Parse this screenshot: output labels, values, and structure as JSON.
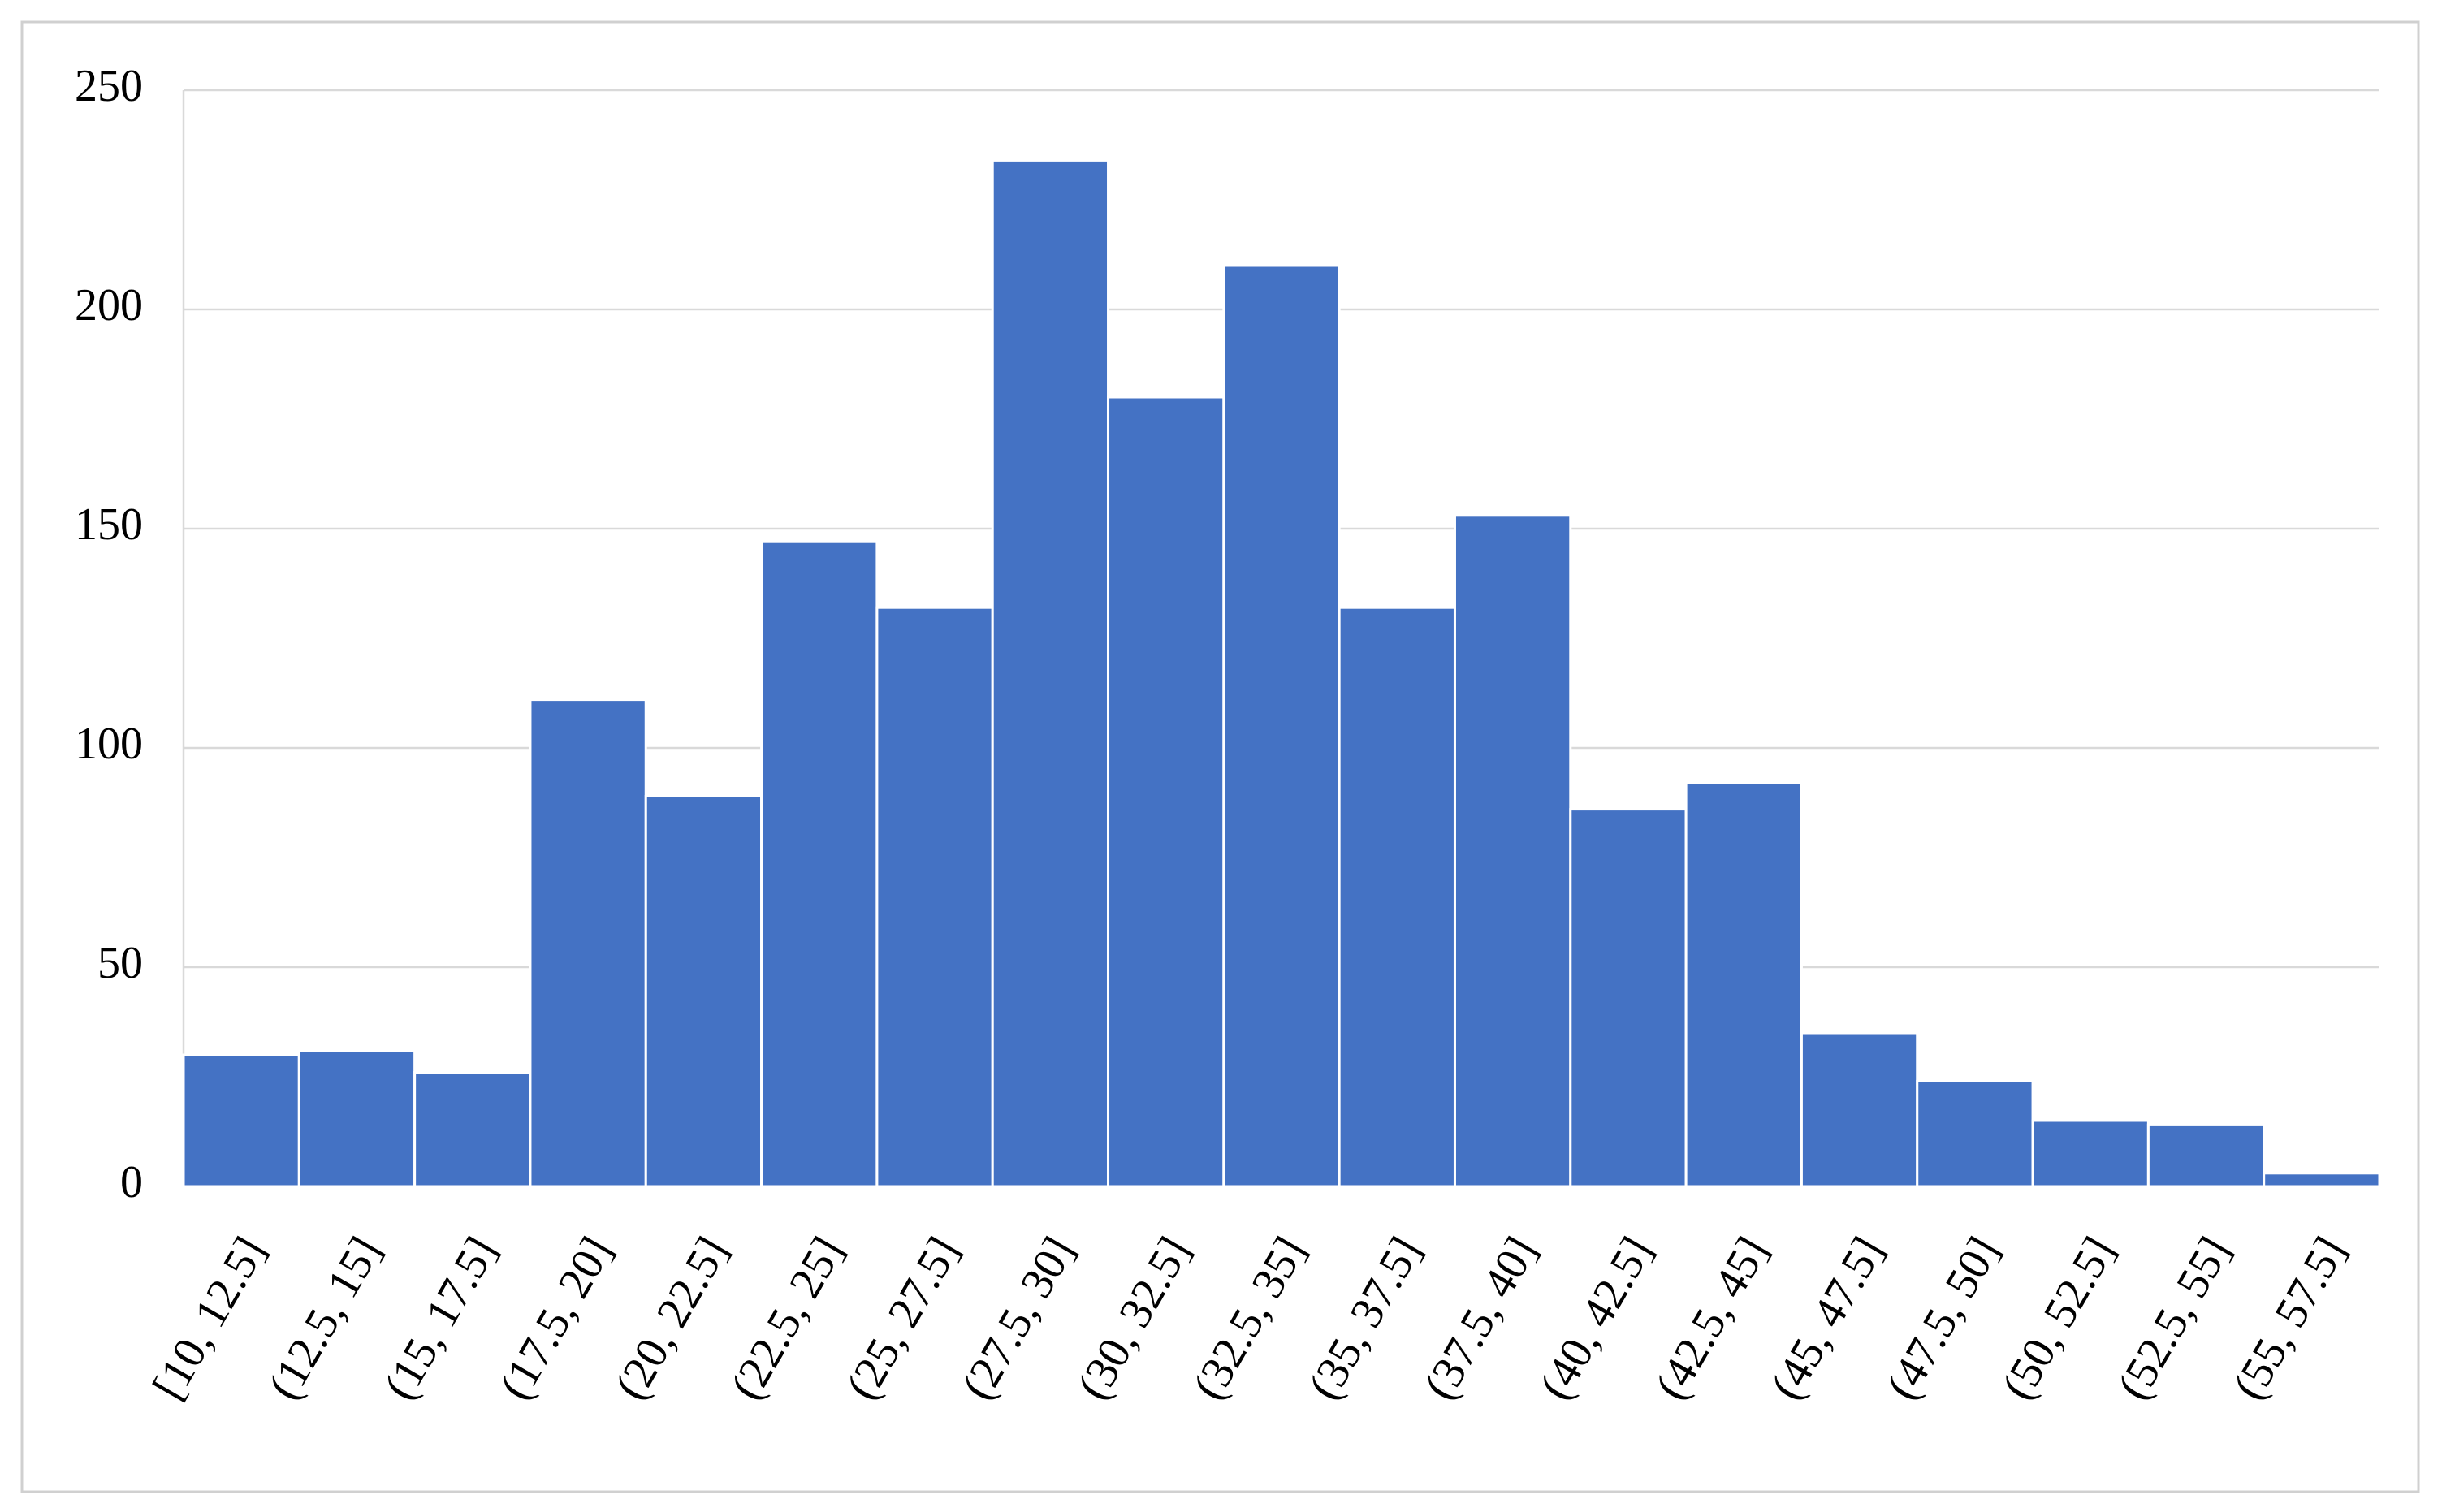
{
  "chart_data": {
    "type": "bar",
    "categories": [
      "[10, 12.5]",
      "(12.5, 15]",
      "(15, 17.5]",
      "(17.5, 20]",
      "(20, 22.5]",
      "(22.5, 25]",
      "(25, 27.5]",
      "(27.5, 30]",
      "(30, 32.5]",
      "(32.5, 35]",
      "(35, 37.5]",
      "(37.5, 40]",
      "(40, 42.5]",
      "(42.5, 45]",
      "(45, 47.5]",
      "(47.5, 50]",
      "(50, 52.5]",
      "(52.5, 55]",
      "(55, 57.5]"
    ],
    "values": [
      30,
      31,
      26,
      111,
      89,
      147,
      132,
      234,
      180,
      210,
      132,
      153,
      86,
      92,
      35,
      24,
      15,
      14,
      3
    ],
    "color": "#4472c4",
    "ylim": [
      0,
      250
    ],
    "yticks": [
      0,
      50,
      100,
      150,
      200,
      250
    ],
    "grid": true
  }
}
